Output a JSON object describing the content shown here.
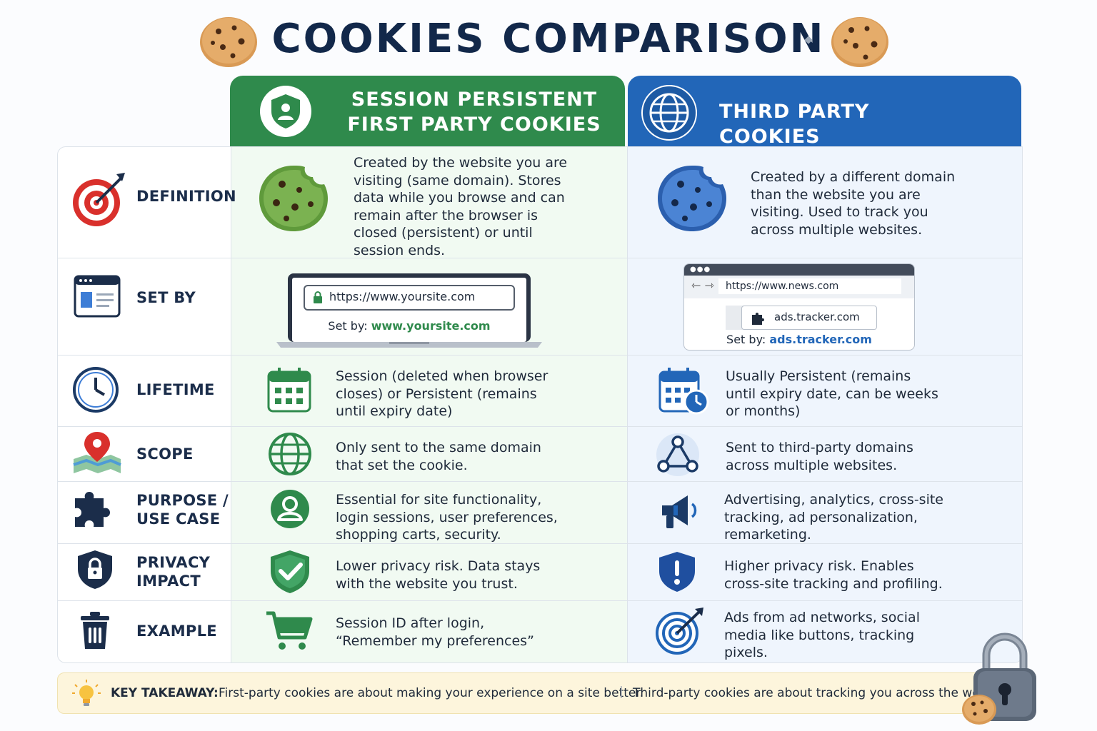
{
  "title": "COOKIES COMPARISON",
  "columns": {
    "first": "SESSION PERSISTENT\nFIRST PARTY COOKIES",
    "third": "THIRD PARTY COOKIES"
  },
  "colors": {
    "first": "#2f8a4c",
    "third": "#2266b8",
    "title": "#12284a"
  },
  "rows": [
    {
      "category": "DEFINITION",
      "icon": "target-icon",
      "first": "Created by the website you are visiting (same domain). Stores data while you browse and can remain after the browser is closed (persistent) or until session ends.",
      "first_icon": "green-cookie-icon",
      "third": "Created by a different domain than the website you are visiting. Used to track you across multiple websites.",
      "third_icon": "blue-cookie-icon"
    },
    {
      "category": "SET BY",
      "icon": "browser-window-icon",
      "first_url": "https://www.yoursite.com",
      "first_setby_label": "Set by:",
      "first_setby_value": "www.yoursite.com",
      "third_url": "https://www.news.com",
      "third_embed": "ads.tracker.com",
      "third_setby_label": "Set by:",
      "third_setby_value": "ads.tracker.com"
    },
    {
      "category": "LIFETIME",
      "icon": "clock-icon",
      "first": "Session (deleted when browser closes) or Persistent (remains until expiry date)",
      "first_icon": "calendar-icon",
      "third": "Usually Persistent (remains until expiry date, can be weeks or months)",
      "third_icon": "calendar-clock-icon"
    },
    {
      "category": "SCOPE",
      "icon": "map-pin-icon",
      "first": "Only sent to the same domain that set the cookie.",
      "first_icon": "globe-icon",
      "third": "Sent to third-party domains across multiple websites.",
      "third_icon": "network-icon"
    },
    {
      "category": "PURPOSE /\nUSE CASE",
      "icon": "puzzle-icon",
      "first": "Essential for site functionality, login sessions, user preferences, shopping carts, security.",
      "first_icon": "user-icon",
      "third": "Advertising, analytics, cross-site tracking, ad personalization, remarketing.",
      "third_icon": "megaphone-icon"
    },
    {
      "category": "PRIVACY\nIMPACT",
      "icon": "shield-lock-icon",
      "first": "Lower privacy risk. Data stays with the website you trust.",
      "first_icon": "shield-check-icon",
      "third": "Higher privacy risk. Enables cross-site tracking and profiling.",
      "third_icon": "shield-alert-icon"
    },
    {
      "category": "EXAMPLE",
      "icon": "trash-icon",
      "first": "Session ID after login, “Remember my preferences”",
      "first_icon": "cart-icon",
      "third": "Ads from ad networks, social media like buttons, tracking pixels.",
      "third_icon": "bullseye-icon"
    }
  ],
  "takeaway": {
    "label": "KEY TAKEAWAY:",
    "first": "First-party cookies are about making your experience on a site better.",
    "separator": "|",
    "third": "Third-party cookies are about tracking you across the web."
  }
}
